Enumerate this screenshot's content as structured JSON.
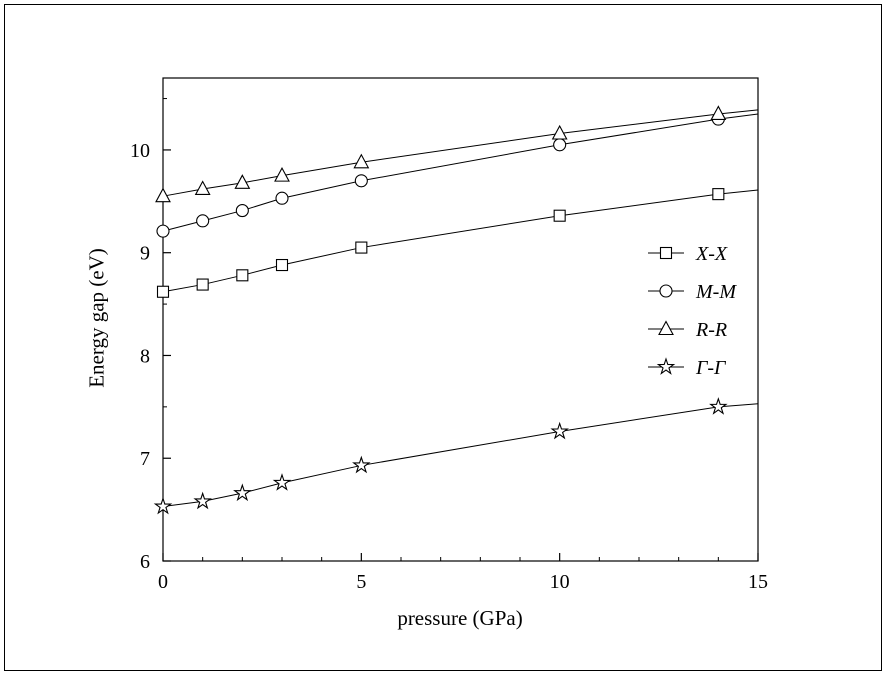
{
  "window": {
    "background": "#ffffff",
    "border_color": "#000000"
  },
  "chart_data": {
    "type": "line",
    "title": "",
    "xlabel": "pressure (GPa)",
    "ylabel": "Energy gap (eV)",
    "xlim": [
      0,
      15
    ],
    "ylim": [
      6,
      10.7
    ],
    "xticks": [
      0,
      5,
      10,
      15
    ],
    "yticks": [
      6,
      7,
      8,
      9,
      10
    ],
    "x_minor_step": 1,
    "y_minor_step": 0.5,
    "grid": false,
    "legend_position": "right-center",
    "line_color": "#000000",
    "marker_fill": "#ffffff",
    "x": [
      0,
      1,
      2,
      3,
      5,
      10,
      14,
      15
    ],
    "marker_mask": [
      1,
      1,
      1,
      1,
      1,
      1,
      1,
      0
    ],
    "series": [
      {
        "name": "X-X",
        "marker": "square",
        "values": [
          8.62,
          8.69,
          8.78,
          8.88,
          9.05,
          9.36,
          9.57,
          9.61
        ]
      },
      {
        "name": "M-M",
        "marker": "circle",
        "values": [
          9.21,
          9.31,
          9.41,
          9.53,
          9.7,
          10.05,
          10.3,
          10.35
        ]
      },
      {
        "name": "R-R",
        "marker": "triangle",
        "values": [
          9.55,
          9.62,
          9.68,
          9.75,
          9.88,
          10.16,
          10.35,
          10.39
        ]
      },
      {
        "name": "Γ-Γ",
        "marker": "star",
        "values": [
          6.53,
          6.58,
          6.66,
          6.76,
          6.93,
          7.26,
          7.5,
          7.53
        ]
      }
    ]
  }
}
